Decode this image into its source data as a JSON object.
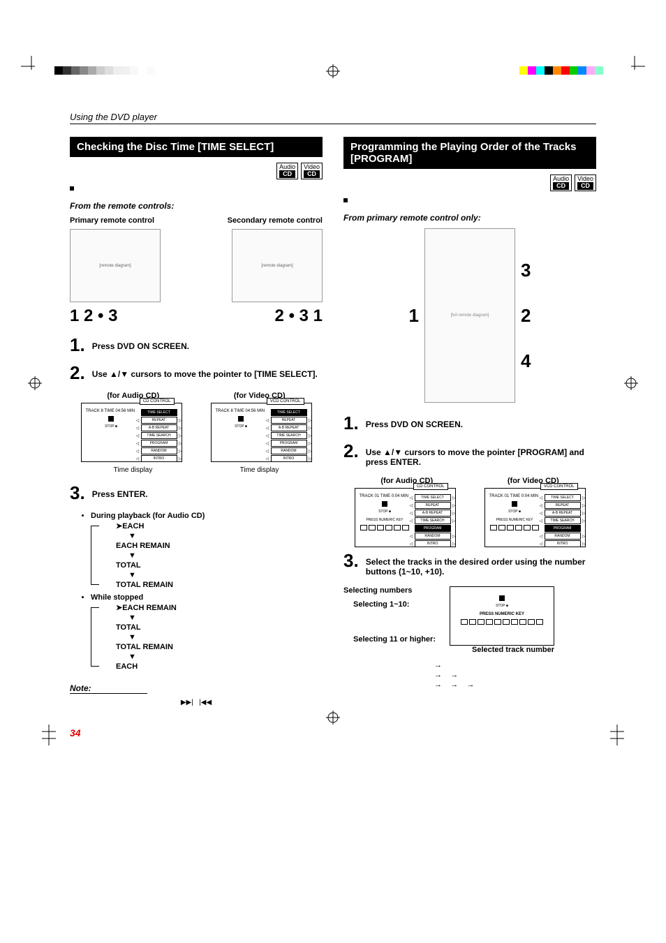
{
  "section_header": "Using the DVD player",
  "page_number": "34",
  "registration": {
    "left_colors": [
      "#000000",
      "#333333",
      "#666666",
      "#888888",
      "#aaaaaa",
      "#cccccc",
      "#dddddd",
      "#eeeeee",
      "#f0f0f0",
      "#f8f8f8",
      "#ffffff",
      "#fafafa"
    ],
    "right_colors": [
      "#ffff00",
      "#ff00ff",
      "#00ffff",
      "#000000",
      "#ff8800",
      "#ff0000",
      "#00cc00",
      "#0088ff",
      "#ffaaff",
      "#88ffcc",
      "#ffffff"
    ]
  },
  "left": {
    "title": "Checking the Disc Time [TIME SELECT]",
    "badges": [
      {
        "top": "Audio",
        "bot": "CD"
      },
      {
        "top": "Video",
        "bot": "CD"
      }
    ],
    "subhead": "From the remote controls:",
    "remote_labels": {
      "primary": "Primary remote control",
      "secondary": "Secondary remote control"
    },
    "callouts": {
      "left": "1   2 • 3",
      "right": "2 • 3       1"
    },
    "step1": "Press DVD ON SCREEN.",
    "step2": "Use ▲/▼ cursors to move the pointer to [TIME SELECT].",
    "cd_label_audio": "(for Audio CD)",
    "cd_label_video": "(for Video CD)",
    "screen_tab_cd": "CD CONTROL",
    "screen_tab_vcd": "VCD CONTROL",
    "time_display": "Time display",
    "step3": "Press ENTER.",
    "playback_header": "During playback (for Audio CD)",
    "flow1": [
      "EACH",
      "EACH REMAIN",
      "TOTAL",
      "TOTAL REMAIN"
    ],
    "stopped_header": "While stopped",
    "flow2": [
      "EACH REMAIN",
      "TOTAL",
      "TOTAL REMAIN",
      "EACH"
    ],
    "note": "Note:",
    "screen_menu": [
      "TIME SELECT",
      "REPEAT",
      "A-B REPEAT",
      "TIME SEARCH",
      "PROGRAM",
      "RANDOM",
      "INTRO"
    ]
  },
  "right": {
    "title": "Programming the Playing Order of the Tracks [PROGRAM]",
    "badges": [
      {
        "top": "Audio",
        "bot": "CD"
      },
      {
        "top": "Video",
        "bot": "CD"
      }
    ],
    "subhead": "From primary remote control only:",
    "callouts_left": "1",
    "callouts_right": [
      "3",
      "2",
      "4"
    ],
    "step1": "Press DVD ON SCREEN.",
    "step2": "Use ▲/▼ cursors to move the pointer [PROGRAM] and press ENTER.",
    "cd_label_audio": "(for Audio CD)",
    "cd_label_video": "(for Video CD)",
    "step3": "Select the tracks in the desired order using the number buttons (1~10, +10).",
    "select_numbers": "Selecting numbers",
    "select_1_10": "Selecting 1~10:",
    "select_11": "Selecting 11 or higher:",
    "selected_track": "Selected track number",
    "screen_menu": [
      "TIME SELECT",
      "REPEAT",
      "A-B REPEAT",
      "TIME SEARCH",
      "PROGRAM",
      "RANDOM",
      "INTRO"
    ]
  }
}
